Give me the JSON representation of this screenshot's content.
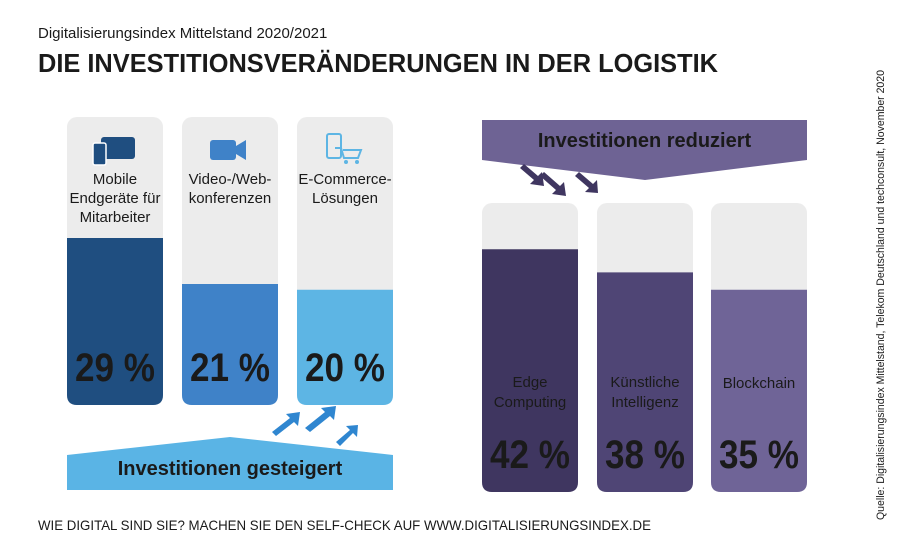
{
  "header": {
    "subtitle": "Digitalisierungsindex Mittelstand 2020/2021",
    "title": "DIE INVESTITIONSVERÄNDERUNGEN IN DER LOGISTIK"
  },
  "chart_data": [
    {
      "type": "bar",
      "label": "Investitionen gesteigert",
      "categories": [
        "Mobile\nEndgeräte für\nMitarbeiter",
        "Video-/Web-\nkonferenzen",
        "E-Commerce-\nLösungen"
      ],
      "values": [
        29,
        21,
        20
      ],
      "value_labels": [
        "29 %",
        "21 %",
        "20 %"
      ],
      "colors": [
        "#1f4e80",
        "#3f82c8",
        "#5db5e4"
      ],
      "banner_color": "#5ab4e5",
      "ylim": [
        0,
        50
      ]
    },
    {
      "type": "bar",
      "label": "Investitionen reduziert",
      "categories": [
        "Edge\nComputing",
        "Künstliche\nIntelligenz",
        "Blockchain"
      ],
      "values": [
        42,
        38,
        35
      ],
      "value_labels": [
        "42 %",
        "38 %",
        "35 %"
      ],
      "colors": [
        "#3f3660",
        "#4f4575",
        "#6f6497"
      ],
      "banner_color": "#6e6394",
      "ylim": [
        0,
        50
      ]
    }
  ],
  "footer": "WIE DIGITAL SIND SIE? MACHEN SIE DEN SELF-CHECK AUF WWW.DIGITALISIERUNGSINDEX.DE",
  "source": "Quelle: Digitalisierungsindex Mittelstand, Telekom Deutschland und techconsult, November 2020"
}
